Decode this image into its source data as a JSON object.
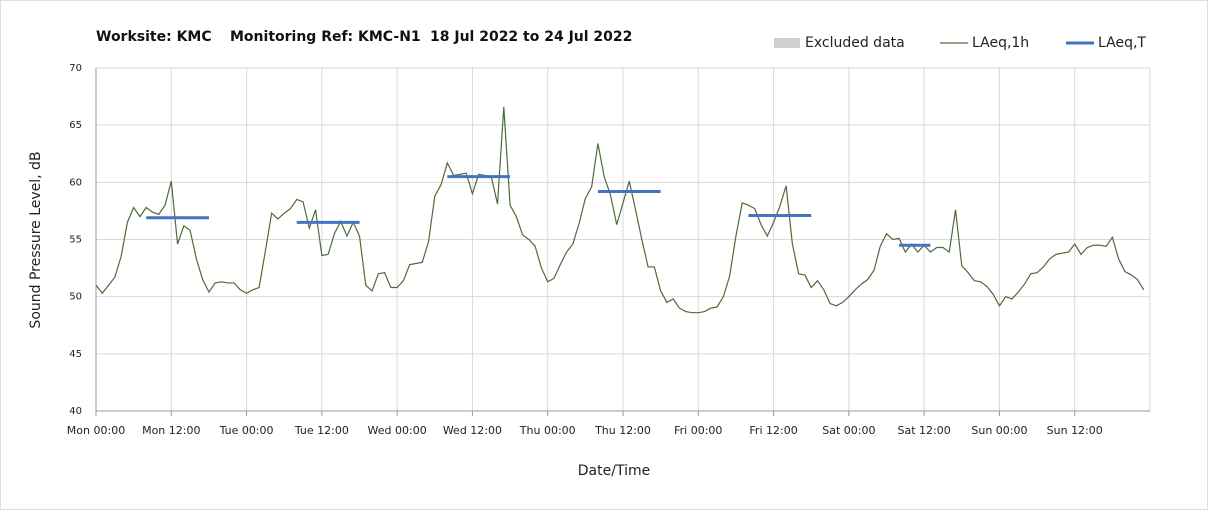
{
  "chart_data": {
    "type": "line",
    "title": [
      "Worksite: KMC",
      "Monitoring Ref: KMC-N1",
      "18 Jul 2022 to 24 Jul 2022"
    ],
    "xlabel": "Date/Time",
    "ylabel": "Sound Pressure Level, dB",
    "excluded_label": "Excluded data",
    "excluded_color": "#d0d0d0",
    "xlim": [
      0,
      168
    ],
    "ylim": [
      40,
      70
    ],
    "yticks": [
      40,
      45,
      50,
      55,
      60,
      65,
      70
    ],
    "xticks": [
      {
        "value": 0,
        "label": "Mon 00:00"
      },
      {
        "value": 12,
        "label": "Mon 12:00"
      },
      {
        "value": 24,
        "label": "Tue 00:00"
      },
      {
        "value": 36,
        "label": "Tue 12:00"
      },
      {
        "value": 48,
        "label": "Wed 00:00"
      },
      {
        "value": 60,
        "label": "Wed 12:00"
      },
      {
        "value": 72,
        "label": "Thu 00:00"
      },
      {
        "value": 84,
        "label": "Thu 12:00"
      },
      {
        "value": 96,
        "label": "Fri 00:00"
      },
      {
        "value": 108,
        "label": "Fri 12:00"
      },
      {
        "value": 120,
        "label": "Sat 00:00"
      },
      {
        "value": 132,
        "label": "Sat 12:00"
      },
      {
        "value": 144,
        "label": "Sun 00:00"
      },
      {
        "value": 156,
        "label": "Sun 12:00"
      }
    ],
    "grid": true,
    "x": [
      0,
      1,
      2,
      3,
      4,
      5,
      6,
      7,
      8,
      9,
      10,
      11,
      12,
      13,
      14,
      15,
      16,
      17,
      18,
      19,
      20,
      21,
      22,
      23,
      24,
      25,
      26,
      27,
      28,
      29,
      30,
      31,
      32,
      33,
      34,
      35,
      36,
      37,
      38,
      39,
      40,
      41,
      42,
      43,
      44,
      45,
      46,
      47,
      48,
      49,
      50,
      51,
      52,
      53,
      54,
      55,
      56,
      57,
      58,
      59,
      60,
      61,
      62,
      63,
      64,
      65,
      66,
      67,
      68,
      69,
      70,
      71,
      72,
      73,
      74,
      75,
      76,
      77,
      78,
      79,
      80,
      81,
      82,
      83,
      84,
      85,
      86,
      87,
      88,
      89,
      90,
      91,
      92,
      93,
      94,
      95,
      96,
      97,
      98,
      99,
      100,
      101,
      102,
      103,
      104,
      105,
      106,
      107,
      108,
      109,
      110,
      111,
      112,
      113,
      114,
      115,
      116,
      117,
      118,
      119,
      120,
      121,
      122,
      123,
      124,
      125,
      126,
      127,
      128,
      129,
      130,
      131,
      132,
      133,
      134,
      135,
      136,
      137,
      138,
      139,
      140,
      141,
      142,
      143,
      144,
      145,
      146,
      147,
      148,
      149,
      150,
      151,
      152,
      153,
      154,
      155,
      156,
      157,
      158,
      159,
      160,
      161,
      162,
      163,
      164,
      165,
      166,
      167
    ],
    "series": [
      {
        "name": "LAeq,1h",
        "color": "#4f6b3a",
        "values": [
          51,
          50.3,
          51,
          51.7,
          53.5,
          56.5,
          57.8,
          57,
          57.8,
          57.4,
          57.2,
          58,
          60.1,
          54.6,
          56.2,
          55.8,
          53.3,
          51.5,
          50.4,
          51.2,
          51.3,
          51.2,
          51.2,
          50.6,
          50.3,
          50.6,
          50.8,
          54,
          57.3,
          56.8,
          57.3,
          57.7,
          58.5,
          58.3,
          56,
          57.6,
          53.6,
          53.7,
          55.5,
          56.6,
          55.3,
          56.5,
          55.3,
          51,
          50.5,
          52,
          52.1,
          50.8,
          50.8,
          51.4,
          52.8,
          52.9,
          53,
          54.8,
          58.8,
          59.8,
          61.7,
          60.6,
          60.7,
          60.8,
          59,
          60.7,
          60.6,
          60.5,
          58.1,
          66.6,
          58,
          57,
          55.4,
          55,
          54.4,
          52.5,
          51.3,
          51.6,
          52.8,
          53.9,
          54.6,
          56.4,
          58.6,
          59.6,
          63.4,
          60.5,
          58.9,
          56.3,
          58.2,
          60.1,
          57.6,
          55,
          52.6,
          52.6,
          50.5,
          49.5,
          49.8,
          49,
          48.7,
          48.6,
          48.6,
          48.7,
          49,
          49.1,
          50,
          51.8,
          55.3,
          58.2,
          58,
          57.7,
          56.3,
          55.3,
          56.5,
          57.9,
          59.7,
          54.6,
          52,
          51.9,
          50.8,
          51.4,
          50.6,
          49.4,
          49.2,
          49.5,
          50,
          50.6,
          51.1,
          51.5,
          52.3,
          54.4,
          55.5,
          55,
          55.1,
          53.9,
          54.6,
          53.9,
          54.5,
          53.9,
          54.3,
          54.3,
          53.9,
          57.6,
          52.7,
          52.1,
          51.4,
          51.3,
          50.9,
          50.2,
          49.2,
          50,
          49.8,
          50.4,
          51.1,
          52,
          52.1,
          52.6,
          53.3,
          53.7,
          53.8,
          53.9,
          54.6,
          53.7,
          54.3,
          54.5,
          54.5,
          54.4,
          55.2,
          53.3,
          52.2,
          51.9,
          51.5,
          50.6
        ]
      },
      {
        "name": "LAeq,T",
        "color": "#4472c4",
        "periods": [
          {
            "x": [
              8,
              18
            ],
            "value": 56.9
          },
          {
            "x": [
              32,
              42
            ],
            "value": 56.5
          },
          {
            "x": [
              56,
              66
            ],
            "value": 60.5
          },
          {
            "x": [
              80,
              90
            ],
            "value": 59.2
          },
          {
            "x": [
              104,
              114
            ],
            "value": 57.1
          },
          {
            "x": [
              128,
              133
            ],
            "value": 54.5
          }
        ]
      }
    ]
  }
}
